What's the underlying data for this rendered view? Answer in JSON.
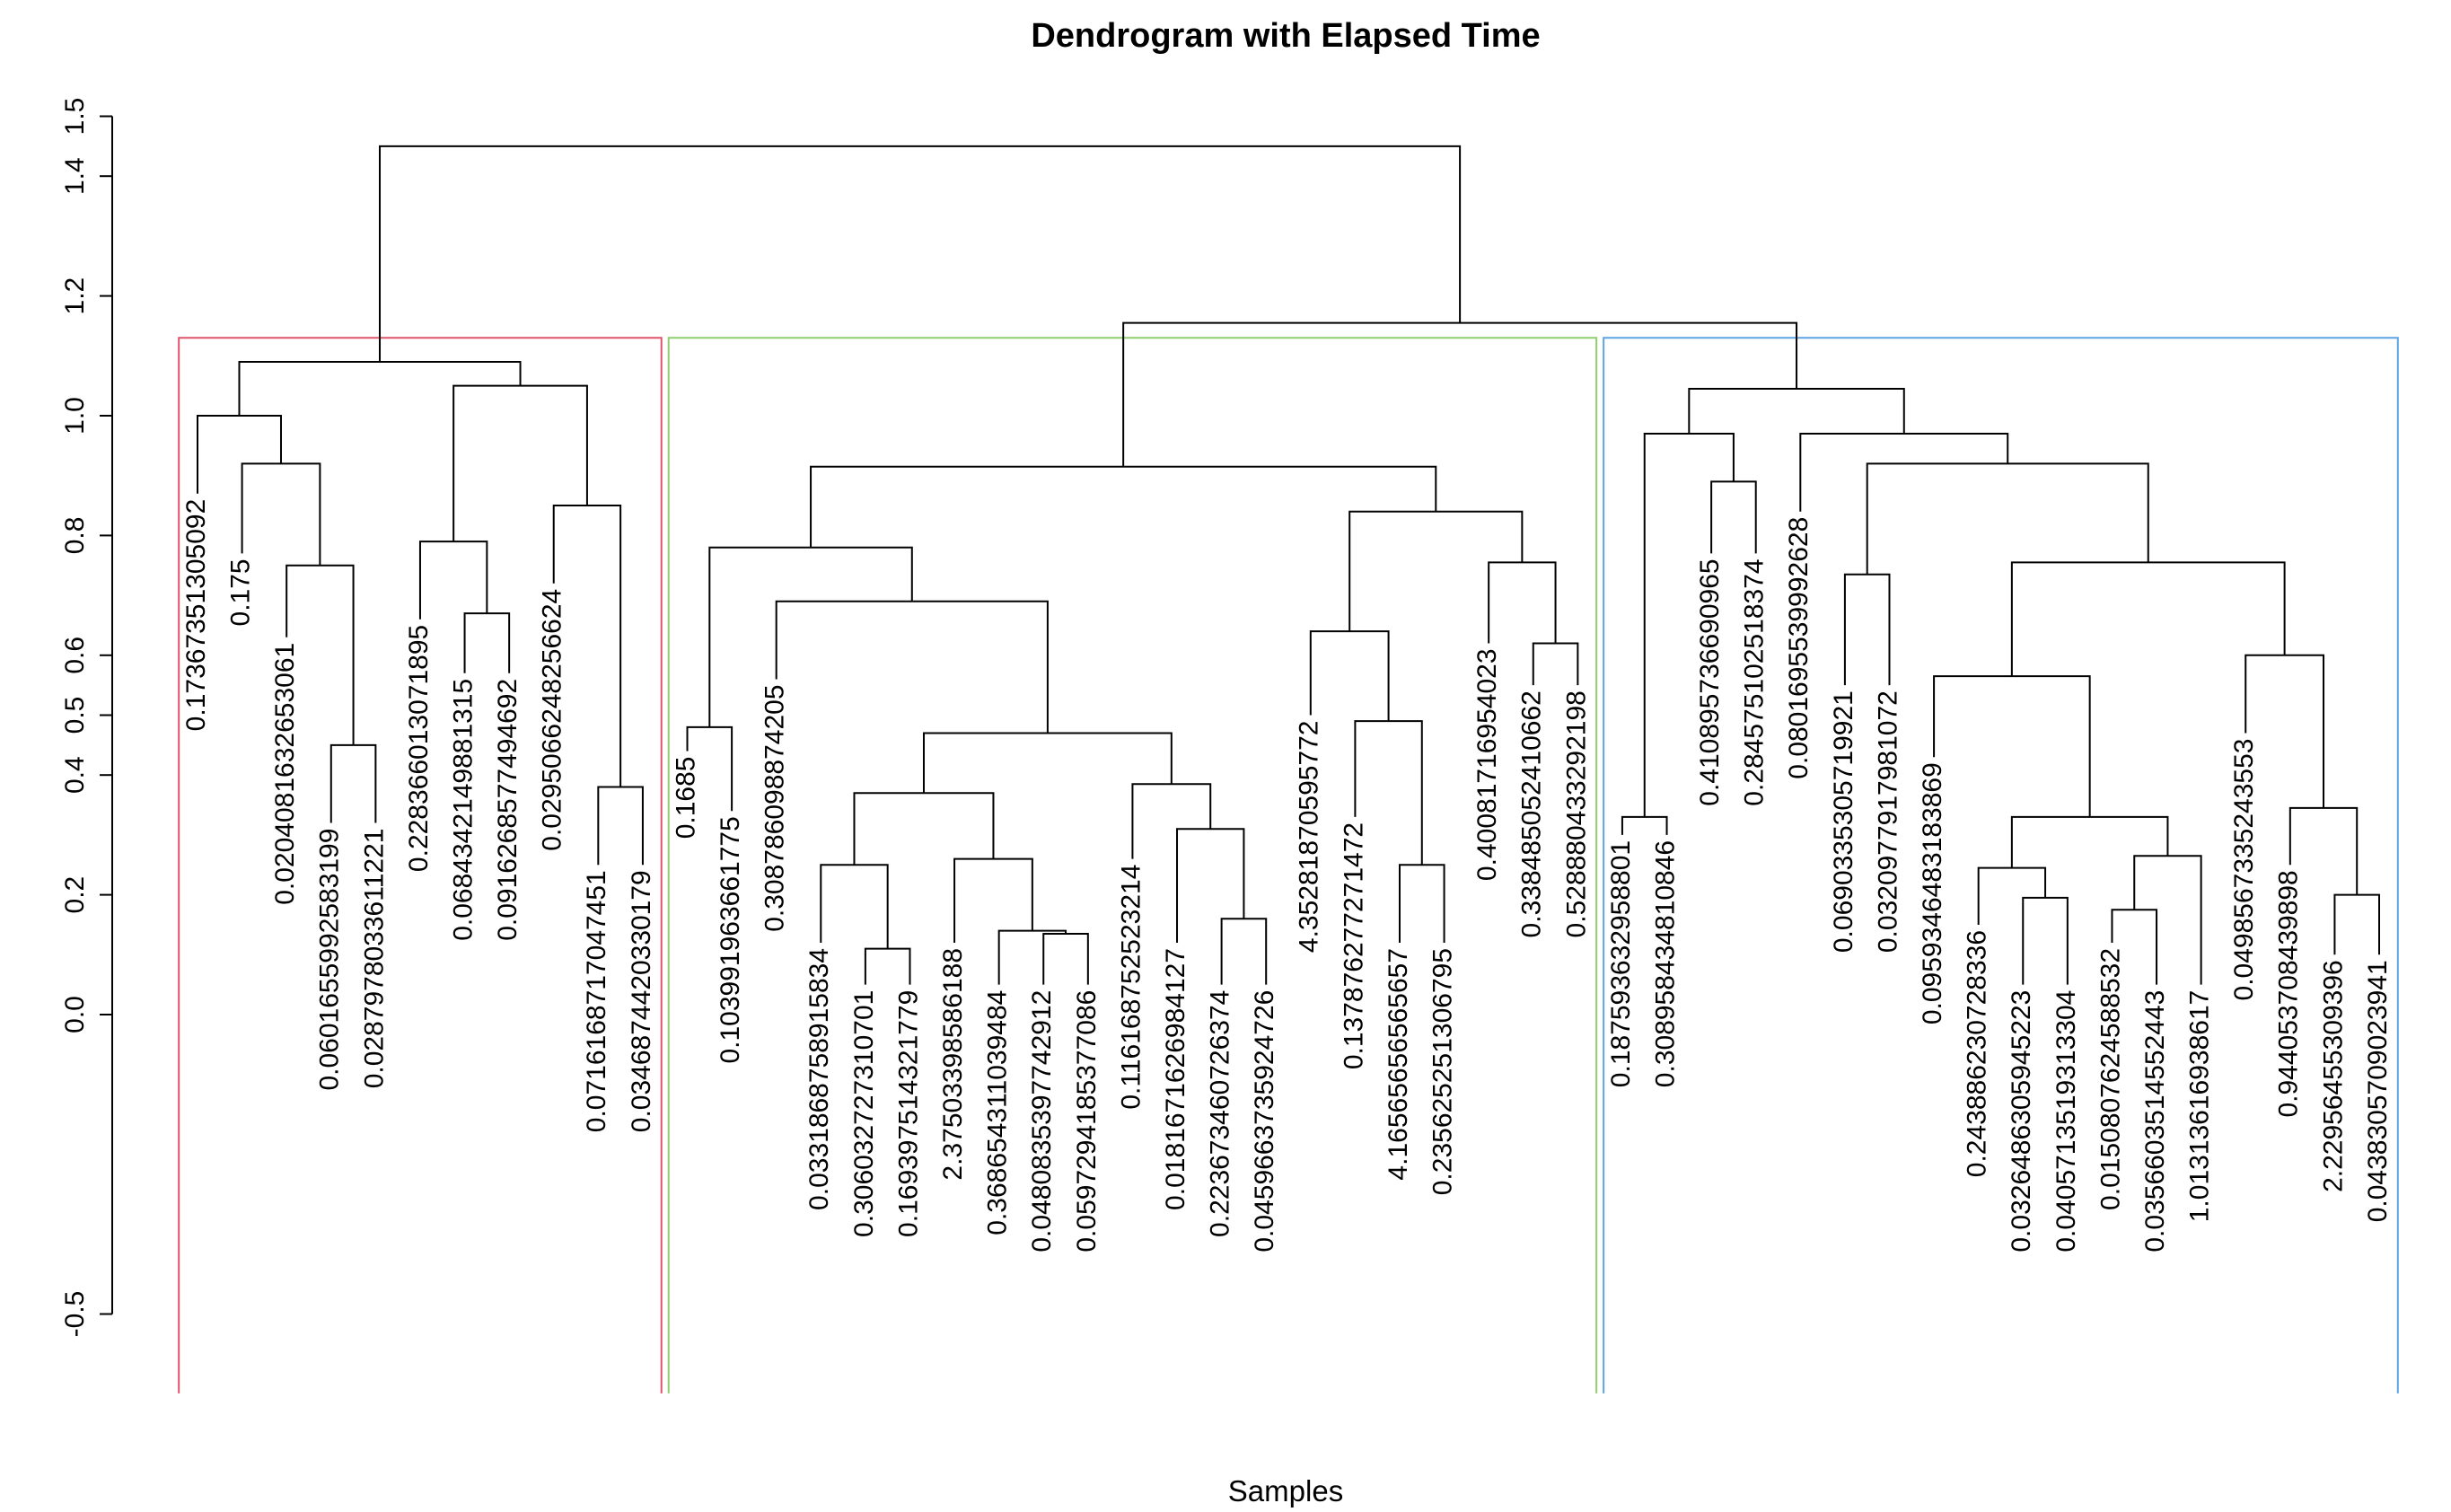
{
  "chart_data": {
    "type": "dendrogram",
    "title": "Dendrogram with Elapsed Time",
    "xlabel": "Samples",
    "ylabel": "",
    "ylim": [
      -0.5,
      1.5
    ],
    "yticks": [
      -0.5,
      0.0,
      0.2,
      0.4,
      0.5,
      0.6,
      0.8,
      1.0,
      1.2,
      1.4,
      1.5
    ],
    "ytick_labels": [
      "-0.5",
      "0.0",
      "0.2",
      "0.4",
      "0.5",
      "0.6",
      "0.8",
      "1.0",
      "1.2",
      "1.4",
      "1.5"
    ],
    "leaf_labels": [
      "0.173673513050​92",
      "0.175",
      "0.0204081632653061",
      "0.0601655992583199",
      "0.0287978033611221",
      "0.228366013071895",
      "0.0684342149881315",
      "0.0916268577494692",
      "0.0295066248256624",
      "0.0716168717047451",
      "0.0346874420330179",
      "0.1685",
      "0.103991963661775",
      "0.308786098874205",
      "0.0331868758915834",
      "0.306032727310701",
      "0.169397514321779",
      "2.37503398586188",
      "0.368654311039484",
      "0.0480835397742912",
      "0.0597294185377086",
      "0.116168752523214",
      "0.0181671626984127",
      "0.223673460726374",
      "0.0459663735924726",
      "4.35281870595772",
      "0.137876277271472",
      "4.16565656565657",
      "0.235625251306795",
      "0.400817169540​23",
      "0.338485052410662",
      "0.528880433292198",
      "0.187593632958801",
      "0.308958434810846",
      "0.410895736690965",
      "0.284575102518374",
      "0.0801695539992628",
      "0.0690335305719921",
      "0.0320977917981072",
      "0.0959346483183869",
      "0.243886230728336",
      "0.0326486305945223",
      "0.0405713519313304",
      "0.0150807624588532",
      "0.0356603514552443",
      "1.01313616938617",
      "0.0498567335243553",
      "0.944053708439898",
      "2.22956455309396",
      "0.0438305709023941"
    ],
    "merges": [
      [
        3,
        4,
        0.45
      ],
      [
        2,
        50,
        0.75
      ],
      [
        1,
        51,
        0.92
      ],
      [
        0,
        52,
        1.0
      ],
      [
        6,
        7,
        0.67
      ],
      [
        5,
        54,
        0.79
      ],
      [
        9,
        10,
        0.38
      ],
      [
        8,
        56,
        0.85
      ],
      [
        55,
        57,
        1.05
      ],
      [
        53,
        58,
        1.09
      ],
      [
        11,
        12,
        0.48
      ],
      [
        15,
        16,
        0.11
      ],
      [
        14,
        61,
        0.25
      ],
      [
        19,
        20,
        0.135
      ],
      [
        18,
        63,
        0.14
      ],
      [
        17,
        64,
        0.26
      ],
      [
        62,
        65,
        0.37
      ],
      [
        23,
        24,
        0.16
      ],
      [
        22,
        67,
        0.31
      ],
      [
        21,
        68,
        0.385
      ],
      [
        66,
        69,
        0.47
      ],
      [
        13,
        70,
        0.69
      ],
      [
        60,
        71,
        0.78
      ],
      [
        27,
        28,
        0.25
      ],
      [
        26,
        73,
        0.49
      ],
      [
        25,
        74,
        0.64
      ],
      [
        30,
        31,
        0.62
      ],
      [
        29,
        76,
        0.755
      ],
      [
        75,
        77,
        0.84
      ],
      [
        72,
        78,
        0.915
      ],
      [
        32,
        33,
        0.33
      ],
      [
        34,
        35,
        0.89
      ],
      [
        80,
        81,
        0.97
      ],
      [
        37,
        38,
        0.735
      ],
      [
        41,
        42,
        0.195
      ],
      [
        40,
        84,
        0.245
      ],
      [
        43,
        44,
        0.175
      ],
      [
        45,
        86,
        0.265
      ],
      [
        85,
        87,
        0.33
      ],
      [
        39,
        88,
        0.565
      ],
      [
        48,
        49,
        0.2
      ],
      [
        47,
        90,
        0.345
      ],
      [
        46,
        91,
        0.6
      ],
      [
        89,
        92,
        0.755
      ],
      [
        83,
        93,
        0.92
      ],
      [
        36,
        94,
        0.97
      ],
      [
        82,
        95,
        1.045
      ],
      [
        79,
        96,
        1.155
      ],
      [
        59,
        97,
        1.45
      ]
    ],
    "leaf_bottoms": [
      0.87,
      0.77,
      0.63,
      0.32,
      0.32,
      0.66,
      0.57,
      0.57,
      0.72,
      0.25,
      0.25,
      0.44,
      0.34,
      0.56,
      0.12,
      0.05,
      0.05,
      0.12,
      0.05,
      0.05,
      0.05,
      0.26,
      0.12,
      0.05,
      0.05,
      0.5,
      0.33,
      0.12,
      0.12,
      0.62,
      0.55,
      0.55,
      0.3,
      0.3,
      0.77,
      0.77,
      0.84,
      0.55,
      0.55,
      0.43,
      0.15,
      0.05,
      0.05,
      0.12,
      0.05,
      0.05,
      0.47,
      0.25,
      0.1,
      0.1
    ],
    "clusters": [
      {
        "first_leaf": 0,
        "last_leaf": 10,
        "color": "#df536b"
      },
      {
        "first_leaf": 11,
        "last_leaf": 31,
        "color": "#8fcf6f"
      },
      {
        "first_leaf": 32,
        "last_leaf": 49,
        "color": "#5ca4e3"
      }
    ],
    "cluster_box_top": 1.13,
    "cluster_box_bottom": -0.55
  }
}
